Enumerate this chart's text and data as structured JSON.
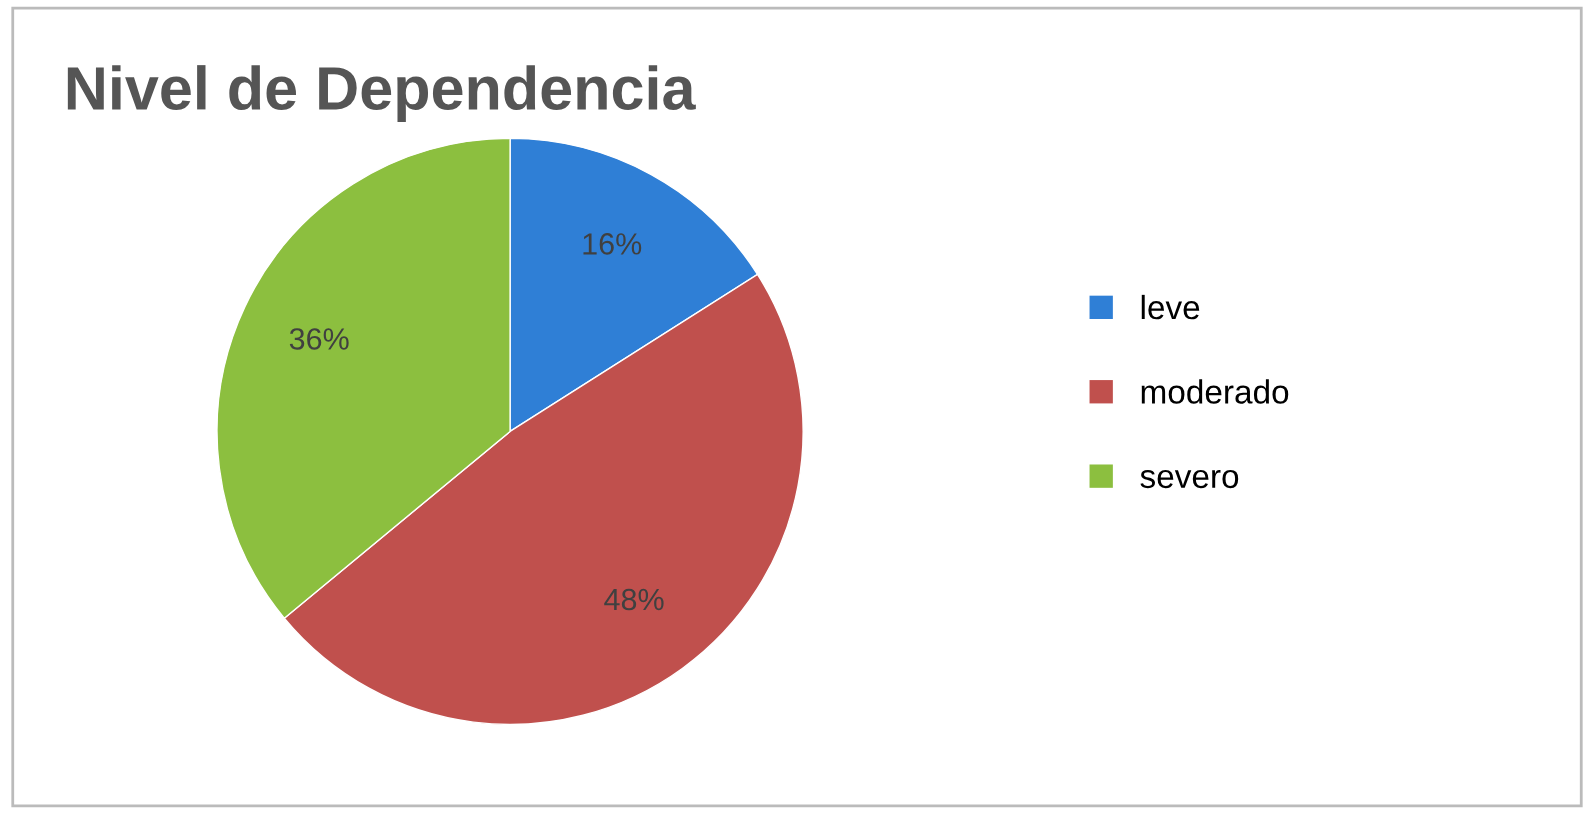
{
  "chart_data": {
    "type": "pie",
    "title": "Nivel de Dependencia",
    "categories": [
      "leve",
      "moderado",
      "severo"
    ],
    "values": [
      16,
      48,
      36
    ],
    "value_labels": [
      "16%",
      "48%",
      "36%"
    ],
    "colors": [
      "#2f7fd6",
      "#c0504d",
      "#8cbf3f"
    ],
    "legend": "right"
  }
}
